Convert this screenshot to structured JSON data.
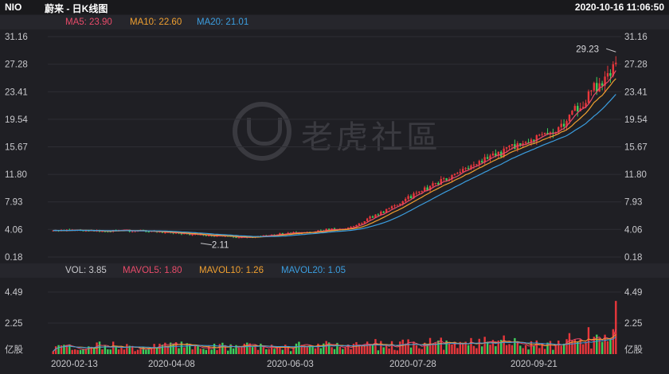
{
  "header": {
    "ticker": "NIO",
    "name": "蔚来 - 日K线图",
    "timestamp": "2020-10-16 11:06:50"
  },
  "ma_legend": [
    {
      "text": "MA5: 23.90",
      "color": "#e94b6a"
    },
    {
      "text": "MA10: 22.60",
      "color": "#f0a030"
    },
    {
      "text": "MA20: 21.01",
      "color": "#3b9ee0"
    }
  ],
  "vol_legend": [
    {
      "text": "VOL: 3.85",
      "color": "#c8c8cc"
    },
    {
      "text": "MAVOL5: 1.80",
      "color": "#e94b6a"
    },
    {
      "text": "MAVOL10: 1.26",
      "color": "#f0a030"
    },
    {
      "text": "MAVOL20: 1.05",
      "color": "#3b9ee0"
    }
  ],
  "price_axis": {
    "left": [
      "31.16",
      "27.28",
      "23.41",
      "19.54",
      "15.67",
      "11.80",
      "7.93",
      "4.06",
      "0.18"
    ],
    "right": [
      "31.16",
      "27.28",
      "23.41",
      "19.54",
      "15.67",
      "11.80",
      "7.93",
      "4.06",
      "0.18"
    ]
  },
  "vol_axis": {
    "left": [
      "4.49",
      "2.25",
      "亿股"
    ],
    "right": [
      "4.49",
      "2.25",
      "亿股"
    ]
  },
  "x_labels": [
    "2020-02-13",
    "2020-04-08",
    "2020-06-03",
    "2020-07-28",
    "2020-09-21"
  ],
  "annotations": {
    "high": "29.23",
    "low": "2.11"
  },
  "watermark": "老虎社區",
  "colors": {
    "up": "#e8373b",
    "down": "#3fcf5c",
    "bg": "#1f1f24",
    "grid": "#2e2e34"
  },
  "chart_data": {
    "type": "candlestick",
    "ylim": [
      0.18,
      31.16
    ],
    "vol_ylim": [
      0,
      5.3
    ],
    "anchors": {
      "x": [
        "2020-02-13",
        "2020-04-08",
        "2020-06-03",
        "2020-07-28",
        "2020-09-21",
        "2020-10-16"
      ],
      "close": [
        3.9,
        2.9,
        4.3,
        12.0,
        19.0,
        27.5
      ]
    },
    "last_close": 27.5,
    "ma_last": {
      "MA5": 23.9,
      "MA10": 22.6,
      "MA20": 21.01
    },
    "vol_last": 3.85,
    "mavol_last": {
      "MAVOL5": 1.8,
      "MAVOL10": 1.26,
      "MAVOL20": 1.05
    }
  }
}
